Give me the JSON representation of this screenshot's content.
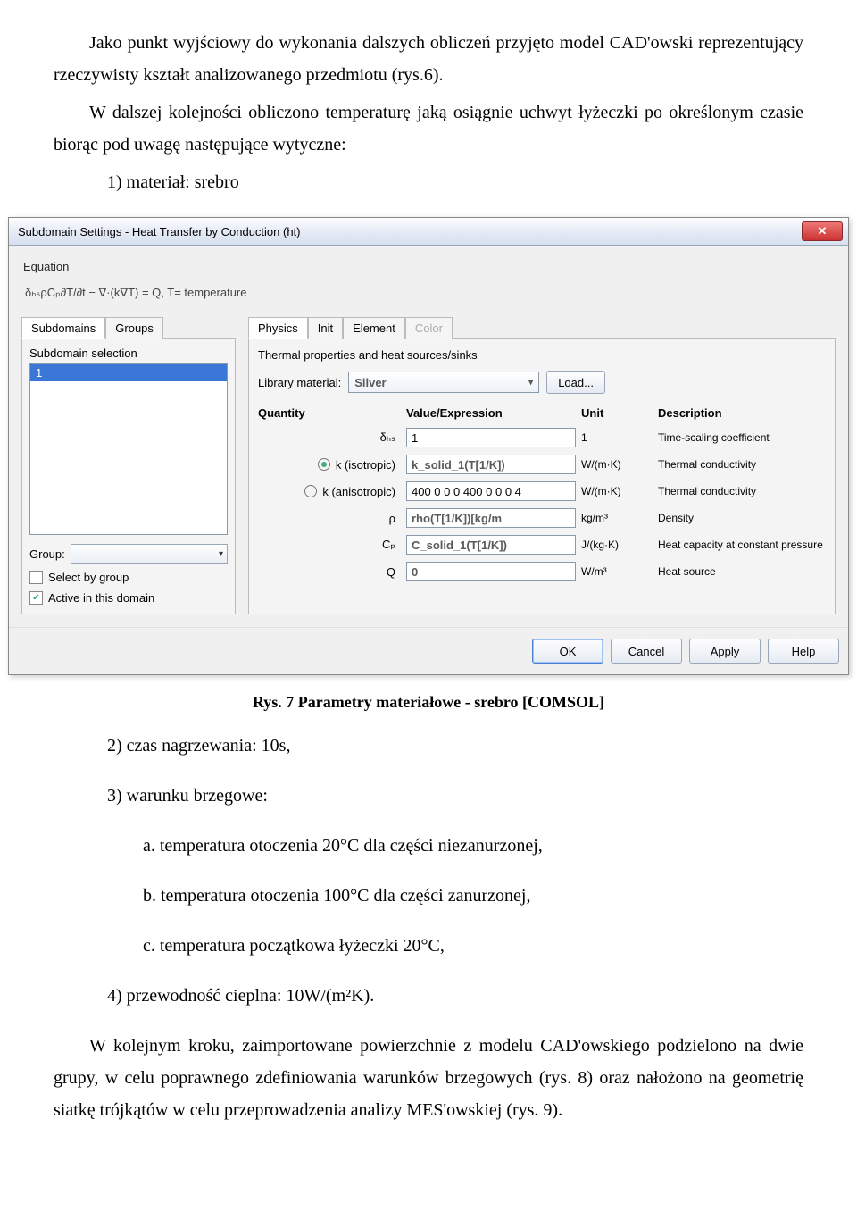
{
  "doc": {
    "p1": "Jako punkt wyjściowy do wykonania dalszych obliczeń przyjęto model CAD'owski reprezentujący rzeczywisty kształt analizowanego przedmiotu (rys.6).",
    "p2": "W dalszej kolejności obliczono temperaturę jaką osiągnie uchwyt łyżeczki po określonym czasie biorąc pod uwagę następujące wytyczne:",
    "li1": "1)  materiał: srebro",
    "caption": "Rys. 7 Parametry materiałowe - srebro [COMSOL]",
    "li2": "2)  czas nagrzewania: 10s,",
    "li3": "3)  warunku brzegowe:",
    "li3a": "a.  temperatura otoczenia 20°C dla części niezanurzonej,",
    "li3b": "b.  temperatura otoczenia 100°C dla części zanurzonej,",
    "li3c": "c.  temperatura początkowa łyżeczki 20°C,",
    "li4": "4)  przewodność cieplna: 10W/(m²K).",
    "p3": "W kolejnym kroku, zaimportowane powierzchnie z modelu CAD'owskiego podzielono na dwie grupy, w celu poprawnego zdefiniowania warunków brzegowych (rys. 8) oraz nałożono na geometrię siatkę trójkątów w celu przeprowadzenia analizy MES'owskiej (rys. 9)."
  },
  "dialog": {
    "title": "Subdomain Settings - Heat Transfer by Conduction (ht)",
    "equation_label": "Equation",
    "equation": "δₕₛρCₚ∂T/∂t − ∇·(k∇T) = Q,  T= temperature",
    "left": {
      "tabs": [
        "Subdomains",
        "Groups"
      ],
      "sub_label": "Subdomain selection",
      "items": [
        "1"
      ],
      "group_label": "Group:",
      "select_by_group": "Select by group",
      "active": "Active in this domain"
    },
    "right": {
      "tabs": [
        "Physics",
        "Init",
        "Element",
        "Color"
      ],
      "desc": "Thermal properties and heat sources/sinks",
      "lib_label": "Library material:",
      "lib_value": "Silver",
      "load": "Load...",
      "headers": {
        "q": "Quantity",
        "v": "Value/Expression",
        "u": "Unit",
        "d": "Description"
      },
      "rows": [
        {
          "qty": "δₕₛ",
          "radio": "none",
          "val": "1",
          "bold": false,
          "unit": "1",
          "desc": "Time-scaling coefficient"
        },
        {
          "qty": "k (isotropic)",
          "radio": "checked",
          "val": "k_solid_1(T[1/K])",
          "bold": true,
          "unit": "W/(m·K)",
          "desc": "Thermal conductivity"
        },
        {
          "qty": "k (anisotropic)",
          "radio": "unchecked",
          "val": "400 0 0 0 400 0 0 0 4",
          "bold": false,
          "unit": "W/(m·K)",
          "desc": "Thermal conductivity"
        },
        {
          "qty": "ρ",
          "radio": "none",
          "val": "rho(T[1/K])[kg/m",
          "bold": true,
          "unit": "kg/m³",
          "desc": "Density"
        },
        {
          "qty": "Cₚ",
          "radio": "none",
          "val": "C_solid_1(T[1/K])",
          "bold": true,
          "unit": "J/(kg·K)",
          "desc": "Heat capacity at constant pressure"
        },
        {
          "qty": "Q",
          "radio": "none",
          "val": "0",
          "bold": true,
          "unit": "W/m³",
          "desc": "Heat source"
        }
      ]
    },
    "footer": {
      "ok": "OK",
      "cancel": "Cancel",
      "apply": "Apply",
      "help": "Help"
    }
  }
}
